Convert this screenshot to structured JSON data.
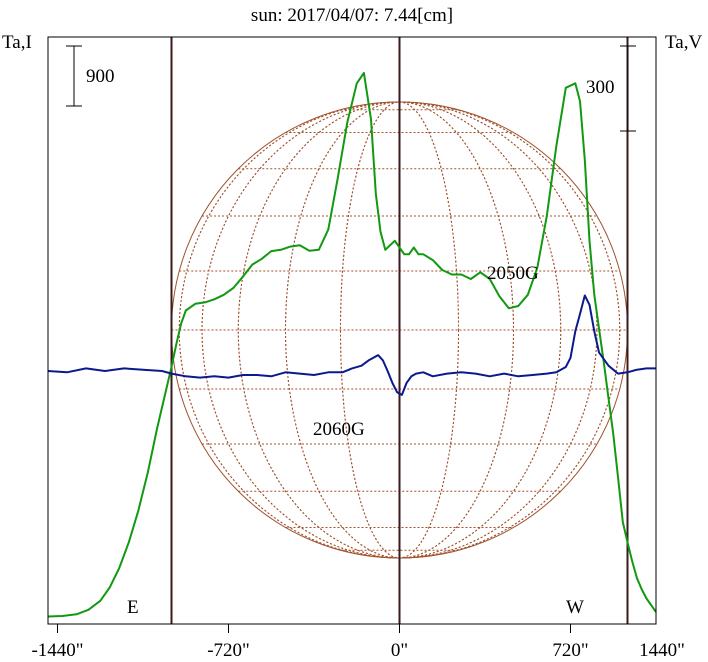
{
  "chart_data": {
    "type": "line",
    "title": "sun: 2017/04/07: 7.44[cm]",
    "left_axis_label": "Ta,I",
    "right_axis_label": "Ta,V",
    "left_scale_bar": "900",
    "right_scale_bar": "300",
    "x_tick_labels": [
      "-1440\"",
      "-720\"",
      "0\"",
      "720\"",
      "1440\""
    ],
    "x_ticks": [
      -1440,
      -720,
      0,
      720,
      1440
    ],
    "xlim": [
      -1480,
      1080
    ],
    "limb_labels": [
      "E",
      "W"
    ],
    "limb_positions": [
      -960,
      960
    ],
    "annotations": [
      "2050G",
      "2060G"
    ],
    "colors": {
      "intensity": "#119911",
      "polarization": "#0a1a8c",
      "solar_disk": "#a0522d",
      "frame": "#000000",
      "limb_lines": "#3a1a1a",
      "title": "#101070"
    },
    "series": [
      {
        "key": "I",
        "x": [
          -1480,
          -1420,
          -1360,
          -1310,
          -1260,
          -1220,
          -1180,
          -1140,
          -1100,
          -1060,
          -1020,
          -980,
          -960,
          -940,
          -920,
          -900,
          -860,
          -820,
          -780,
          -740,
          -700,
          -660,
          -620,
          -580,
          -540,
          -500,
          -460,
          -420,
          -380,
          -340,
          -300,
          -260,
          -220,
          -180,
          -150,
          -120,
          -100,
          -80,
          -60,
          -40,
          -20,
          0,
          20,
          40,
          60,
          80,
          100,
          140,
          180,
          220,
          260,
          300,
          340,
          380,
          420,
          460,
          500,
          540,
          580,
          620,
          660,
          700,
          740,
          760,
          780,
          800,
          820,
          840,
          860,
          880,
          900,
          920,
          940,
          960,
          980,
          1000,
          1020,
          1040,
          1060,
          1080
        ],
        "values": [
          100,
          110,
          150,
          250,
          450,
          750,
          1180,
          1750,
          2450,
          3300,
          4300,
          5200,
          5650,
          6150,
          6600,
          6900,
          7050,
          7080,
          7150,
          7250,
          7400,
          7650,
          7920,
          8050,
          8220,
          8250,
          8320,
          8350,
          8230,
          8250,
          8700,
          9850,
          11080,
          11950,
          12180,
          11150,
          9500,
          8650,
          8250,
          8350,
          8450,
          8300,
          8150,
          8150,
          8300,
          8150,
          8150,
          8020,
          7800,
          7700,
          7700,
          7600,
          7750,
          7600,
          7220,
          6950,
          7000,
          7250,
          7850,
          9000,
          10550,
          11850,
          11950,
          11550,
          10250,
          8450,
          7250,
          6500,
          5750,
          4950,
          4150,
          3200,
          2200,
          1750,
          1320,
          950,
          700,
          500,
          350,
          200
        ]
      },
      {
        "key": "V",
        "x": [
          -1480,
          -1400,
          -1320,
          -1240,
          -1160,
          -1080,
          -1000,
          -960,
          -900,
          -840,
          -780,
          -720,
          -660,
          -600,
          -540,
          -480,
          -420,
          -360,
          -300,
          -240,
          -200,
          -160,
          -130,
          -110,
          -90,
          -70,
          -50,
          -30,
          -10,
          10,
          30,
          50,
          70,
          100,
          140,
          200,
          260,
          320,
          380,
          440,
          500,
          560,
          620,
          660,
          700,
          720,
          740,
          760,
          780,
          800,
          820,
          840,
          880,
          920,
          960,
          1000,
          1040,
          1080
        ],
        "values": [
          0,
          -10,
          20,
          0,
          20,
          10,
          0,
          -20,
          -40,
          -50,
          -40,
          -50,
          -30,
          -30,
          -40,
          -10,
          -20,
          -30,
          -10,
          -10,
          20,
          40,
          80,
          100,
          120,
          80,
          0,
          -90,
          -160,
          -180,
          -90,
          -40,
          -20,
          -10,
          -40,
          -20,
          -10,
          -20,
          -40,
          -20,
          -40,
          -30,
          -20,
          -10,
          30,
          100,
          300,
          430,
          570,
          500,
          300,
          140,
          40,
          -20,
          -10,
          10,
          20,
          20
        ]
      }
    ]
  }
}
